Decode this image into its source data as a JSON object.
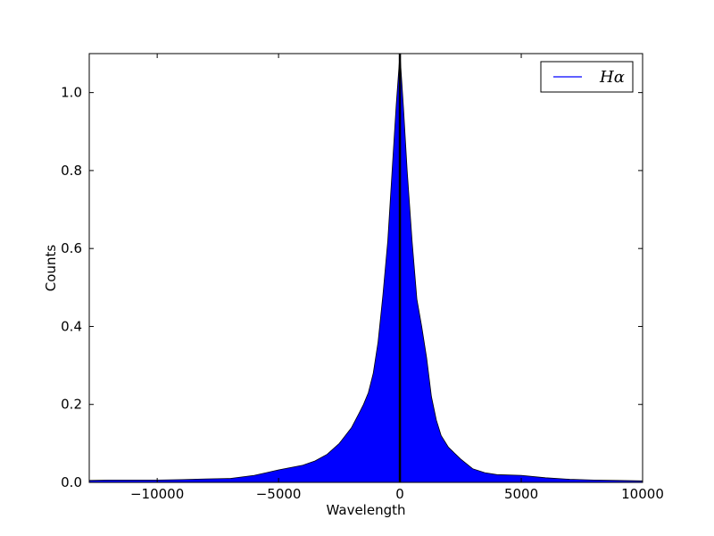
{
  "chart_data": {
    "type": "area",
    "title": "",
    "xlabel": "Wavelength",
    "ylabel": "Counts",
    "xlim": [
      -12800,
      10000
    ],
    "ylim": [
      0.0,
      1.1
    ],
    "xticks": [
      -10000,
      -5000,
      0,
      5000,
      10000
    ],
    "xtick_labels": [
      "−10000",
      "−5000",
      "0",
      "5000",
      "10000"
    ],
    "yticks": [
      0.0,
      0.2,
      0.4,
      0.6,
      0.8,
      1.0
    ],
    "ytick_labels": [
      "0.0",
      "0.2",
      "0.4",
      "0.6",
      "0.8",
      "1.0"
    ],
    "grid": false,
    "legend_position": "top-right",
    "series": [
      {
        "name": "Hα",
        "color": "#0000ff",
        "x": [
          -12800,
          -12000,
          -11000,
          -10000,
          -9000,
          -8000,
          -7000,
          -6000,
          -5500,
          -5000,
          -4500,
          -4000,
          -3500,
          -3000,
          -2500,
          -2000,
          -1700,
          -1500,
          -1300,
          -1100,
          -900,
          -700,
          -500,
          -300,
          -150,
          0,
          150,
          300,
          500,
          700,
          900,
          1100,
          1300,
          1500,
          1700,
          2000,
          2500,
          3000,
          3500,
          4000,
          5000,
          6000,
          7000,
          8000,
          9000,
          10000
        ],
        "y": [
          0.005,
          0.006,
          0.006,
          0.006,
          0.007,
          0.009,
          0.01,
          0.018,
          0.025,
          0.032,
          0.038,
          0.044,
          0.055,
          0.072,
          0.1,
          0.14,
          0.175,
          0.2,
          0.23,
          0.28,
          0.36,
          0.48,
          0.62,
          0.82,
          0.97,
          1.1,
          0.96,
          0.8,
          0.62,
          0.47,
          0.4,
          0.32,
          0.22,
          0.16,
          0.12,
          0.09,
          0.06,
          0.035,
          0.025,
          0.02,
          0.018,
          0.012,
          0.008,
          0.006,
          0.005,
          0.004
        ]
      }
    ],
    "annotations": [
      {
        "type": "vline",
        "x": 0,
        "color": "#000000"
      }
    ]
  }
}
